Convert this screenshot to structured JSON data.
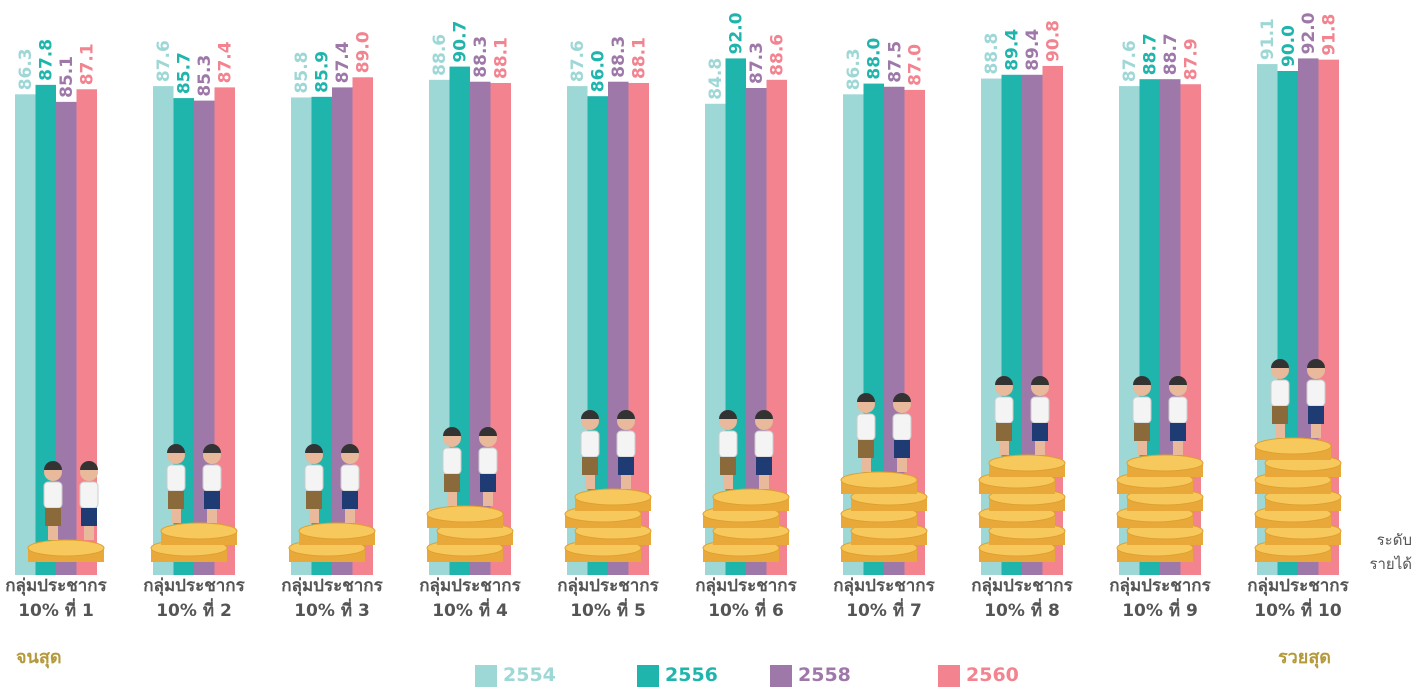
{
  "chart_data": {
    "type": "bar",
    "categories": [
      "กลุ่มประชากร\n10% ที่ 1",
      "กลุ่มประชากร\n10% ที่ 2",
      "กลุ่มประชากร\n10% ที่ 3",
      "กลุ่มประชากร\n10% ที่ 4",
      "กลุ่มประชากร\n10% ที่ 5",
      "กลุ่มประชากร\n10% ที่ 6",
      "กลุ่มประชากร\n10% ที่ 7",
      "กลุ่มประชากร\n10% ที่ 8",
      "กลุ่มประชากร\n10% ที่ 9",
      "กลุ่มประชากร\n10% ที่ 10"
    ],
    "series": [
      {
        "name": "2554",
        "color": "#9dd7d6",
        "values": [
          86.3,
          87.6,
          85.8,
          88.6,
          87.6,
          84.8,
          86.3,
          88.8,
          87.6,
          91.1
        ],
        "value_labels": [
          "86.3",
          "87.6",
          "85.8",
          "88.6",
          "87.6",
          "84.8",
          "86.3",
          "88.8",
          "87.6",
          "91.1"
        ]
      },
      {
        "name": "2556",
        "color": "#1fb5ad",
        "values": [
          87.8,
          85.7,
          85.9,
          90.7,
          86.0,
          92.0,
          88.0,
          89.4,
          88.7,
          90.0
        ],
        "value_labels": [
          "87.8",
          "85.7",
          "85.9",
          "90.7",
          "86.0",
          "92.0",
          "88.0",
          "89.4",
          "88.7",
          "90.0"
        ]
      },
      {
        "name": "2558",
        "color": "#9e78a8",
        "values": [
          85.1,
          85.3,
          87.4,
          88.3,
          88.3,
          87.3,
          87.5,
          89.4,
          88.7,
          92.0
        ],
        "value_labels": [
          "85.1",
          "85.3",
          "87.4",
          "88.3",
          "88.3",
          "87.3",
          "87.5",
          "89.4",
          "88.7",
          "92.0"
        ]
      },
      {
        "name": "2560",
        "color": "#f2838f",
        "values": [
          87.1,
          87.4,
          89.0,
          88.1,
          88.1,
          88.6,
          87.0,
          90.8,
          87.9,
          91.8
        ],
        "value_labels": [
          "87.1",
          "87.4",
          "89.0",
          "88.1",
          "88.1",
          "88.6",
          "87.0",
          "90.8",
          "87.9",
          "91.8"
        ]
      }
    ],
    "ylim": [
      10,
      100
    ],
    "annotations": [
      "จนสุด",
      "รวยสุด",
      "ระดับ\nรายได้"
    ]
  }
}
